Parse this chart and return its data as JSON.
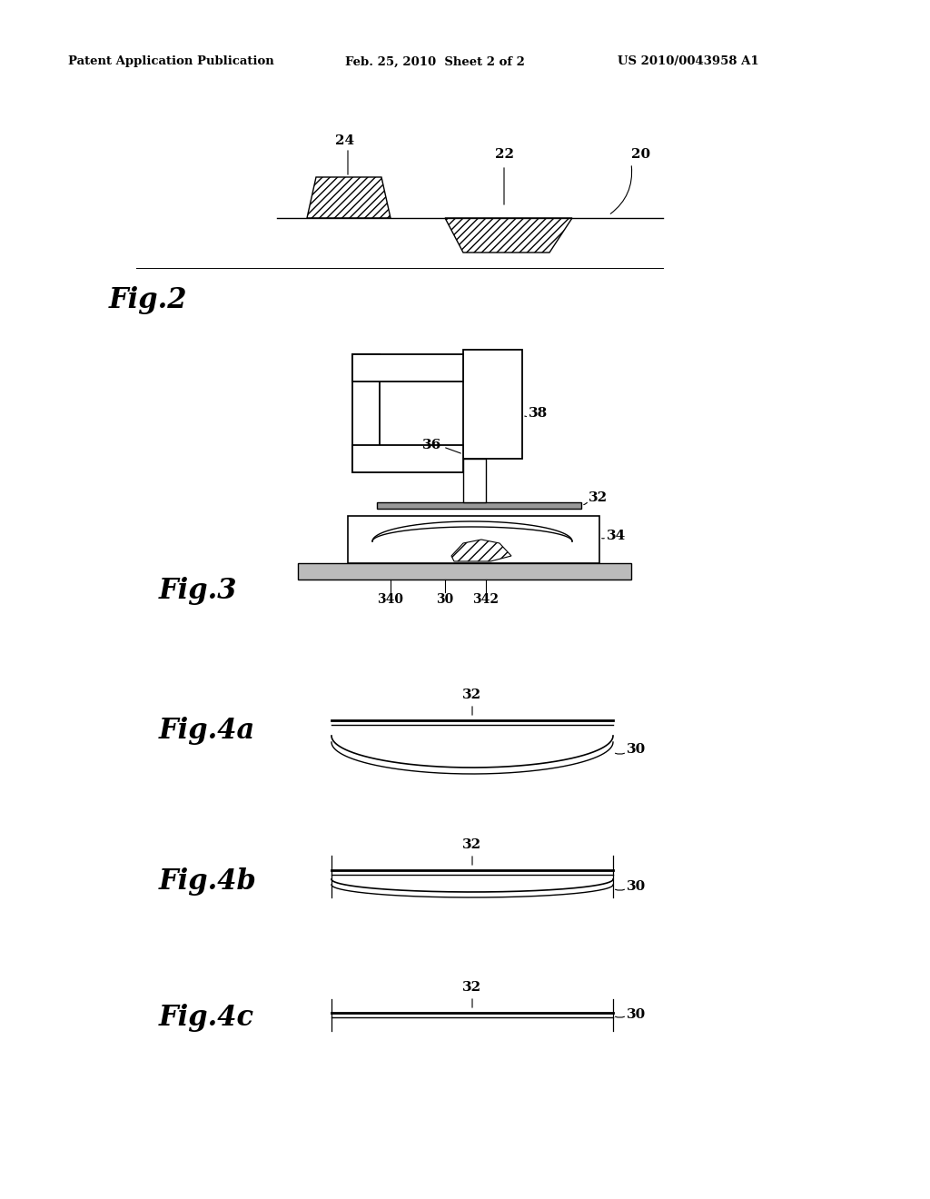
{
  "bg_color": "#ffffff",
  "header_left": "Patent Application Publication",
  "header_mid": "Feb. 25, 2010  Sheet 2 of 2",
  "header_right": "US 2010/0043958 A1"
}
